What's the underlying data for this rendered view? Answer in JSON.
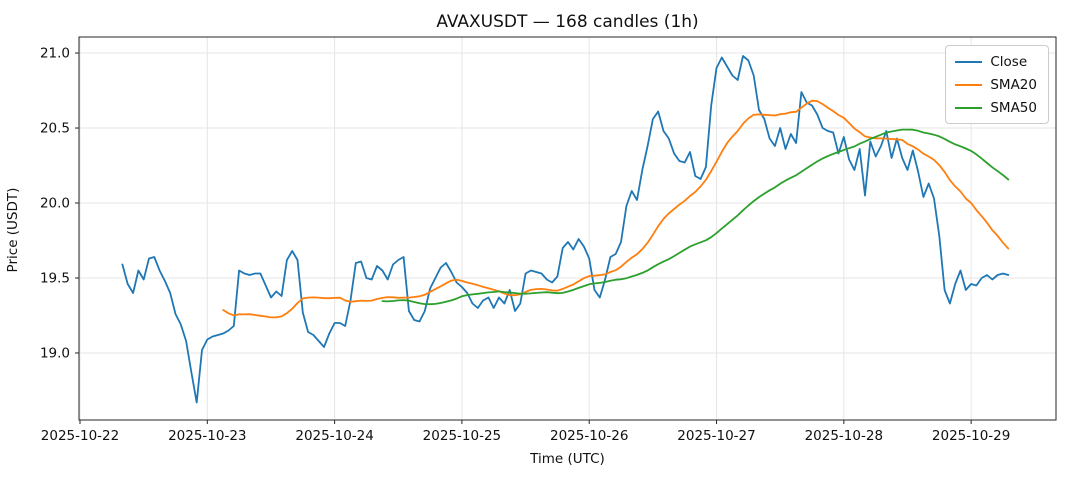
{
  "figure": {
    "title": "AVAXUSDT — 168 candles (1h)",
    "xlabel": "Time (UTC)",
    "ylabel": "Price (USDT)"
  },
  "chart_data": {
    "type": "line",
    "title": "AVAXUSDT — 168 candles (1h)",
    "xlabel": "Time (UTC)",
    "ylabel": "Price (USDT)",
    "symbol": "AVAXUSDT",
    "interval": "1h",
    "candle_count": 168,
    "x_start": "2025-10-22 08:00",
    "x_step_hours": 1,
    "grid": true,
    "legend_position": "upper right",
    "x_domain_hours": [
      -8.19,
      176.0
    ],
    "y_domain": [
      18.553,
      21.107
    ],
    "y_ticks": [
      19.0,
      19.5,
      20.0,
      20.5,
      21.0
    ],
    "x_ticks": [
      {
        "hour": -8,
        "label": "2025-10-22"
      },
      {
        "hour": 16,
        "label": "2025-10-23"
      },
      {
        "hour": 40,
        "label": "2025-10-24"
      },
      {
        "hour": 64,
        "label": "2025-10-25"
      },
      {
        "hour": 88,
        "label": "2025-10-26"
      },
      {
        "hour": 112,
        "label": "2025-10-27"
      },
      {
        "hour": 136,
        "label": "2025-10-28"
      },
      {
        "hour": 160,
        "label": "2025-10-29"
      }
    ],
    "series": [
      {
        "name": "Close",
        "color": "#1f77b4",
        "kind": "raw",
        "values": [
          19.59,
          19.46,
          19.4,
          19.55,
          19.49,
          19.63,
          19.64,
          19.55,
          19.48,
          19.4,
          19.26,
          19.19,
          19.08,
          18.87,
          18.67,
          19.02,
          19.09,
          19.11,
          19.12,
          19.13,
          19.15,
          19.18,
          19.55,
          19.53,
          19.52,
          19.53,
          19.53,
          19.45,
          19.37,
          19.41,
          19.38,
          19.62,
          19.68,
          19.62,
          19.27,
          19.14,
          19.12,
          19.08,
          19.04,
          19.13,
          19.2,
          19.2,
          19.18,
          19.35,
          19.6,
          19.61,
          19.5,
          19.49,
          19.58,
          19.55,
          19.49,
          19.59,
          19.62,
          19.64,
          19.28,
          19.22,
          19.21,
          19.28,
          19.43,
          19.5,
          19.57,
          19.6,
          19.54,
          19.47,
          19.44,
          19.4,
          19.33,
          19.3,
          19.35,
          19.37,
          19.3,
          19.37,
          19.33,
          19.42,
          19.28,
          19.33,
          19.53,
          19.55,
          19.54,
          19.53,
          19.49,
          19.47,
          19.51,
          19.7,
          19.74,
          19.69,
          19.76,
          19.71,
          19.63,
          19.42,
          19.37,
          19.49,
          19.64,
          19.66,
          19.74,
          19.98,
          20.08,
          20.02,
          20.22,
          20.38,
          20.56,
          20.61,
          20.48,
          20.43,
          20.33,
          20.28,
          20.27,
          20.34,
          20.18,
          20.16,
          20.24,
          20.65,
          20.9,
          20.97,
          20.91,
          20.85,
          20.82,
          20.98,
          20.95,
          20.85,
          20.62,
          20.56,
          20.43,
          20.38,
          20.5,
          20.36,
          20.46,
          20.4,
          20.74,
          20.67,
          20.65,
          20.59,
          20.5,
          20.48,
          20.47,
          20.33,
          20.44,
          20.29,
          20.22,
          20.36,
          20.05,
          20.41,
          20.31,
          20.38,
          20.48,
          20.3,
          20.43,
          20.3,
          20.22,
          20.35,
          20.21,
          20.04,
          20.13,
          20.03,
          19.78,
          19.42,
          19.33,
          19.46,
          19.55,
          19.42,
          19.46,
          19.45,
          19.5,
          19.52,
          19.49,
          19.52,
          19.53,
          19.52
        ]
      },
      {
        "name": "SMA20",
        "color": "#ff7f0e",
        "kind": "sma",
        "window": 20,
        "derived_from": "Close"
      },
      {
        "name": "SMA50",
        "color": "#2ca02c",
        "kind": "sma",
        "window": 50,
        "derived_from": "Close"
      }
    ],
    "colors": {
      "close": "#1f77b4",
      "sma20": "#ff7f0e",
      "sma50": "#2ca02c",
      "grid": "#e6e6e6",
      "spine": "#262626"
    }
  }
}
